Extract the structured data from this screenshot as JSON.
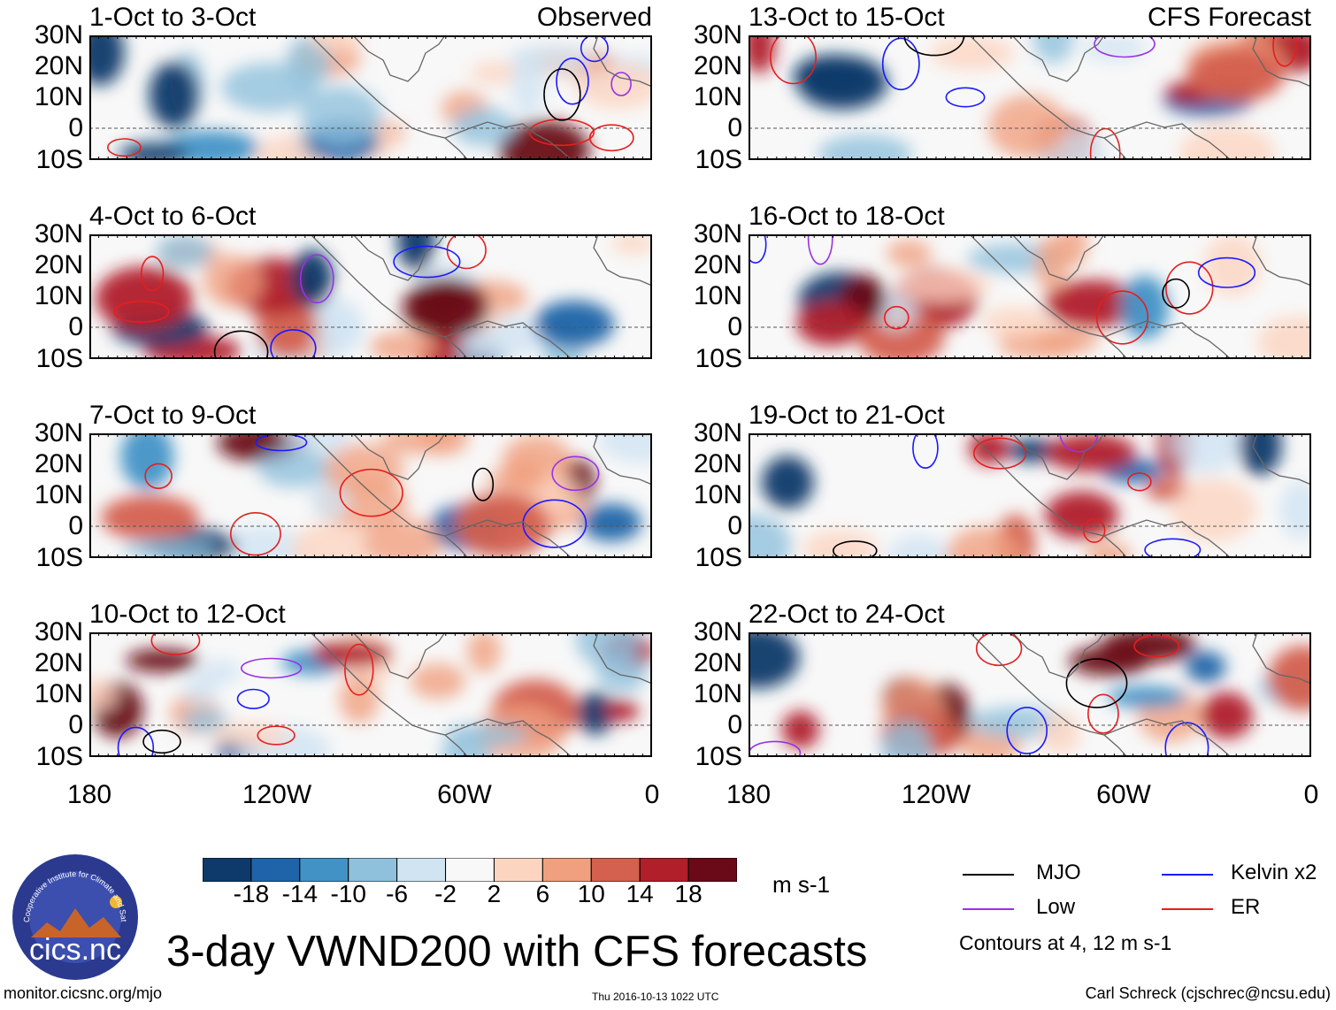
{
  "header": {
    "left_tag": "Observed",
    "right_tag": "CFS Forecast"
  },
  "panels": {
    "observed": [
      "1-Oct to 3-Oct",
      "4-Oct to 6-Oct",
      "7-Oct to 9-Oct",
      "10-Oct to 12-Oct"
    ],
    "forecast": [
      "13-Oct to 15-Oct",
      "16-Oct to 18-Oct",
      "19-Oct to 21-Oct",
      "22-Oct to 24-Oct"
    ]
  },
  "axes": {
    "lat_labels": [
      "30N",
      "20N",
      "10N",
      "0",
      "10S"
    ],
    "lon_labels": [
      "180",
      "120W",
      "60W",
      "0"
    ]
  },
  "colorbar": {
    "ticks": [
      "-18",
      "-14",
      "-10",
      "-6",
      "-2",
      "2",
      "6",
      "10",
      "14",
      "18"
    ],
    "colors": [
      "#0d3a6a",
      "#1f64a8",
      "#4292c6",
      "#8fc0dc",
      "#d0e4f2",
      "#f8f8f8",
      "#fcd5c0",
      "#f0a07f",
      "#d4604f",
      "#b11f2a",
      "#6a0a18"
    ],
    "units": "m s-1"
  },
  "legend": {
    "items": [
      {
        "label": "MJO",
        "color": "#000000"
      },
      {
        "label": "Kelvin x2",
        "color": "#1a1aff"
      },
      {
        "label": "Low",
        "color": "#9b30e6"
      },
      {
        "label": "ER",
        "color": "#e61e1e"
      }
    ],
    "contour_note": "Contours at 4, 12 m s-1"
  },
  "title": "3-day VWND200 with CFS forecasts",
  "logo_text": "cics.nc",
  "logo_ring_text": "Cooperative Institute for Climate and Satellites",
  "footer": {
    "url": "monitor.cicsnc.org/mjo",
    "date": "Thu 2016-10-13 1022 UTC",
    "author": "Carl Schreck (cjschrec@ncsu.edu)"
  }
}
